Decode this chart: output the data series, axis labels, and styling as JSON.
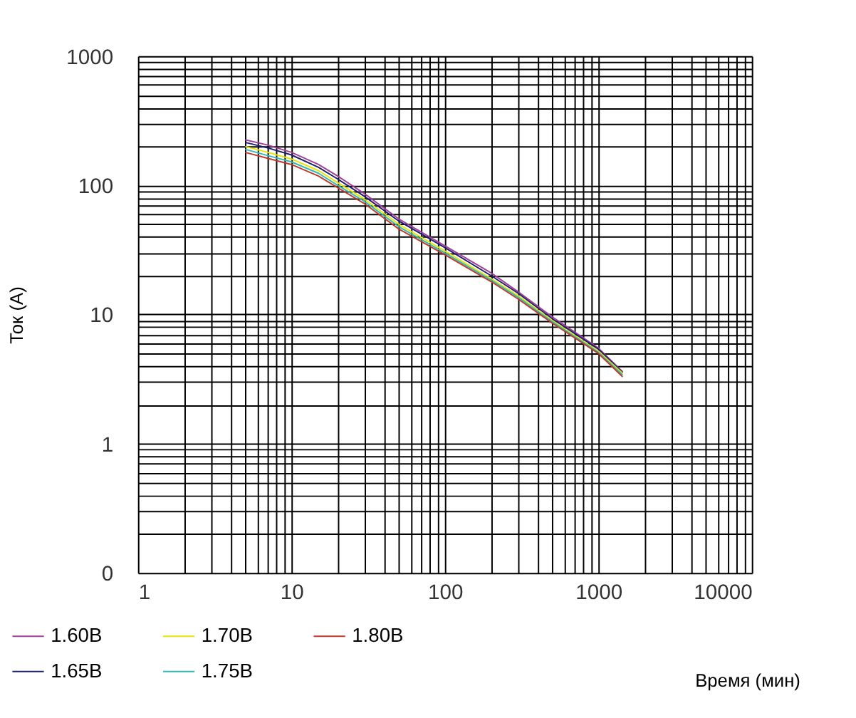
{
  "chart_data": {
    "type": "line",
    "xlabel": "Время (мин)",
    "ylabel": "Ток (А)",
    "log": "xy",
    "grid": true,
    "legend": "bottom",
    "line_style": "solid",
    "marker": "none",
    "x": [
      5,
      7,
      10,
      15,
      20,
      30,
      50,
      100,
      200,
      300,
      500,
      1000,
      1440
    ],
    "series": [
      {
        "name": "1.60В",
        "color": "#a0409a",
        "values": [
          225,
          205,
          180,
          145,
          118,
          86,
          55,
          34,
          21,
          15,
          9.6,
          5.5,
          3.6
        ]
      },
      {
        "name": "1.65В",
        "color": "#1f1f6e",
        "values": [
          215,
          195,
          172,
          138,
          112,
          82,
          53,
          33,
          20,
          14.6,
          9.3,
          5.4,
          3.55
        ]
      },
      {
        "name": "1.70В",
        "color": "#e6e600",
        "values": [
          200,
          180,
          160,
          130,
          105,
          78,
          50,
          31,
          19,
          14,
          9,
          5.2,
          3.5
        ]
      },
      {
        "name": "1.75В",
        "color": "#33b8b8",
        "values": [
          190,
          170,
          152,
          124,
          100,
          75,
          48,
          30,
          18.5,
          13.6,
          8.8,
          5.1,
          3.4
        ]
      },
      {
        "name": "1.80В",
        "color": "#c0392b",
        "values": [
          180,
          162,
          145,
          118,
          96,
          72,
          46,
          29,
          18,
          13.2,
          8.6,
          5.0,
          3.3
        ]
      }
    ],
    "xlim": [
      1,
      10000
    ],
    "xticks": [
      1,
      {
        "value": 2,
        "label": null
      },
      {
        "value": 3,
        "label": null
      },
      {
        "value": 4,
        "label": null
      },
      {
        "value": 5,
        "label": null
      },
      {
        "value": 6,
        "label": null
      },
      {
        "value": 7,
        "label": null
      },
      {
        "value": 8,
        "label": null
      },
      {
        "value": 9,
        "label": null
      },
      10,
      {
        "value": 20,
        "label": null
      },
      {
        "value": 30,
        "label": null
      },
      {
        "value": 40,
        "label": null
      },
      {
        "value": 50,
        "label": null
      },
      {
        "value": 60,
        "label": null
      },
      {
        "value": 70,
        "label": null
      },
      {
        "value": 80,
        "label": null
      },
      {
        "value": 90,
        "label": null
      },
      100,
      {
        "value": 200,
        "label": null
      },
      {
        "value": 300,
        "label": null
      },
      {
        "value": 400,
        "label": null
      },
      {
        "value": 500,
        "label": null
      },
      {
        "value": 600,
        "label": null
      },
      {
        "value": 700,
        "label": null
      },
      {
        "value": 800,
        "label": null
      },
      {
        "value": 900,
        "label": null
      },
      1000,
      {
        "value": 2000,
        "label": null
      },
      {
        "value": 3000,
        "label": null
      },
      {
        "value": 4000,
        "label": null
      },
      {
        "value": 5000,
        "label": null
      },
      {
        "value": 6000,
        "label": null
      },
      {
        "value": 7000,
        "label": null
      },
      {
        "value": 8000,
        "label": null
      },
      {
        "value": 9000,
        "label": null
      },
      10000
    ],
    "ylim": [
      0.1,
      1000
    ],
    "yticks": [
      {
        "value": 0.1,
        "label": "0"
      },
      {
        "value": 0.2,
        "label": null
      },
      {
        "value": 0.3,
        "label": null
      },
      {
        "value": 0.4,
        "label": null
      },
      {
        "value": 0.5,
        "label": null
      },
      {
        "value": 0.6,
        "label": null
      },
      {
        "value": 0.7,
        "label": null
      },
      {
        "value": 0.8,
        "label": null
      },
      {
        "value": 0.9,
        "label": null
      },
      1,
      {
        "value": 2,
        "label": null
      },
      {
        "value": 3,
        "label": null
      },
      {
        "value": 4,
        "label": null
      },
      {
        "value": 5,
        "label": null
      },
      {
        "value": 6,
        "label": null
      },
      {
        "value": 7,
        "label": null
      },
      {
        "value": 8,
        "label": null
      },
      {
        "value": 9,
        "label": null
      },
      10,
      {
        "value": 20,
        "label": null
      },
      {
        "value": 30,
        "label": null
      },
      {
        "value": 40,
        "label": null
      },
      {
        "value": 50,
        "label": null
      },
      {
        "value": 60,
        "label": null
      },
      {
        "value": 70,
        "label": null
      },
      {
        "value": 80,
        "label": null
      },
      {
        "value": 90,
        "label": null
      },
      100,
      {
        "value": 200,
        "label": null
      },
      {
        "value": 300,
        "label": null
      },
      {
        "value": 400,
        "label": null
      },
      {
        "value": 500,
        "label": null
      },
      {
        "value": 600,
        "label": null
      },
      {
        "value": 700,
        "label": null
      },
      {
        "value": 800,
        "label": null
      },
      {
        "value": 900,
        "label": null
      },
      1000
    ]
  }
}
